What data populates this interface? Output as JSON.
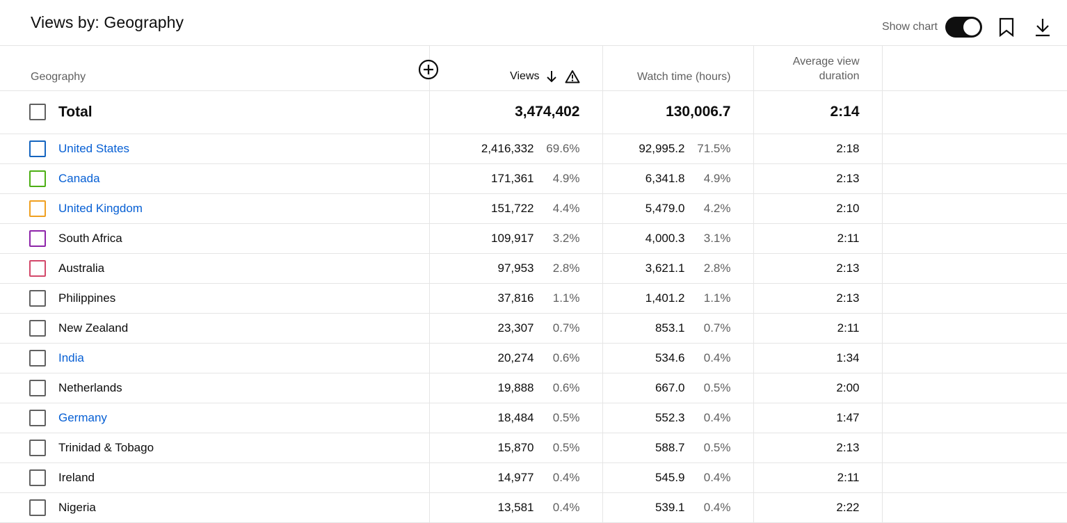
{
  "header": {
    "title": "Views by: Geography",
    "show_chart_label": "Show chart",
    "show_chart_on": true
  },
  "columns": {
    "geography": "Geography",
    "views": "Views",
    "watch_time": "Watch time (hours)",
    "avg_view_duration_line1": "Average view",
    "avg_view_duration_line2": "duration"
  },
  "total": {
    "label": "Total",
    "views": "3,474,402",
    "watch_time": "130,006.7",
    "avg_view_duration": "2:14"
  },
  "rows": [
    {
      "country": "United States",
      "link": true,
      "checkbox_color": "#1565c0",
      "views": "2,416,332",
      "views_pct": "69.6%",
      "watch_time": "92,995.2",
      "watch_pct": "71.5%",
      "avd": "2:18"
    },
    {
      "country": "Canada",
      "link": true,
      "checkbox_color": "#4caf14",
      "views": "171,361",
      "views_pct": "4.9%",
      "watch_time": "6,341.8",
      "watch_pct": "4.9%",
      "avd": "2:13"
    },
    {
      "country": "United Kingdom",
      "link": true,
      "checkbox_color": "#f0a020",
      "views": "151,722",
      "views_pct": "4.4%",
      "watch_time": "5,479.0",
      "watch_pct": "4.2%",
      "avd": "2:10"
    },
    {
      "country": "South Africa",
      "link": false,
      "checkbox_color": "#8e24aa",
      "views": "109,917",
      "views_pct": "3.2%",
      "watch_time": "4,000.3",
      "watch_pct": "3.1%",
      "avd": "2:11"
    },
    {
      "country": "Australia",
      "link": false,
      "checkbox_color": "#d3486a",
      "views": "97,953",
      "views_pct": "2.8%",
      "watch_time": "3,621.1",
      "watch_pct": "2.8%",
      "avd": "2:13"
    },
    {
      "country": "Philippines",
      "link": false,
      "checkbox_color": "#606060",
      "views": "37,816",
      "views_pct": "1.1%",
      "watch_time": "1,401.2",
      "watch_pct": "1.1%",
      "avd": "2:13"
    },
    {
      "country": "New Zealand",
      "link": false,
      "checkbox_color": "#606060",
      "views": "23,307",
      "views_pct": "0.7%",
      "watch_time": "853.1",
      "watch_pct": "0.7%",
      "avd": "2:11"
    },
    {
      "country": "India",
      "link": true,
      "checkbox_color": "#606060",
      "views": "20,274",
      "views_pct": "0.6%",
      "watch_time": "534.6",
      "watch_pct": "0.4%",
      "avd": "1:34"
    },
    {
      "country": "Netherlands",
      "link": false,
      "checkbox_color": "#606060",
      "views": "19,888",
      "views_pct": "0.6%",
      "watch_time": "667.0",
      "watch_pct": "0.5%",
      "avd": "2:00"
    },
    {
      "country": "Germany",
      "link": true,
      "checkbox_color": "#606060",
      "views": "18,484",
      "views_pct": "0.5%",
      "watch_time": "552.3",
      "watch_pct": "0.4%",
      "avd": "1:47"
    },
    {
      "country": "Trinidad & Tobago",
      "link": false,
      "checkbox_color": "#606060",
      "views": "15,870",
      "views_pct": "0.5%",
      "watch_time": "588.7",
      "watch_pct": "0.5%",
      "avd": "2:13"
    },
    {
      "country": "Ireland",
      "link": false,
      "checkbox_color": "#606060",
      "views": "14,977",
      "views_pct": "0.4%",
      "watch_time": "545.9",
      "watch_pct": "0.4%",
      "avd": "2:11"
    },
    {
      "country": "Nigeria",
      "link": false,
      "checkbox_color": "#606060",
      "views": "13,581",
      "views_pct": "0.4%",
      "watch_time": "539.1",
      "watch_pct": "0.4%",
      "avd": "2:22"
    }
  ]
}
